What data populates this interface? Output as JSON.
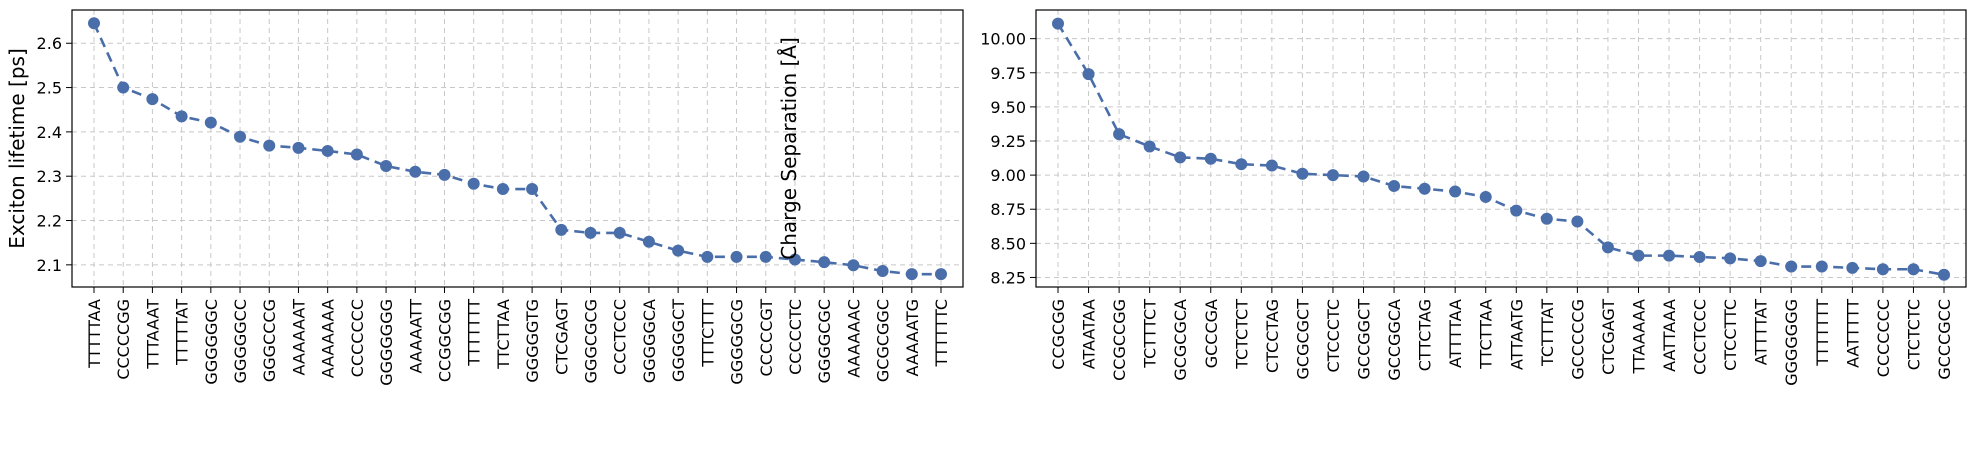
{
  "chart_data": [
    {
      "type": "line",
      "ylabel": "Exciton lifetime [ps]",
      "xlabel": "",
      "title": "",
      "grid": true,
      "ylim": [
        2.05,
        2.675
      ],
      "yticks": [
        2.1,
        2.2,
        2.3,
        2.4,
        2.5,
        2.6
      ],
      "categories": [
        "TTTTTAA",
        "CCCCCGG",
        "TTTAAAT",
        "TTTTTAT",
        "GGGGGGC",
        "GGGGGCC",
        "GGGCCCG",
        "AAAAAAT",
        "AAAAAAA",
        "CCCCCCC",
        "GGGGGGG",
        "AAAAATT",
        "CCGGCGG",
        "TTTTTTT",
        "TTCTTAA",
        "GGGGGTG",
        "CTCGAGT",
        "GGGCGCG",
        "CCCTCCC",
        "GGGGGCA",
        "GGGGGCT",
        "TTTCTTT",
        "GGGGGCG",
        "CCCCCGT",
        "CCCCCTC",
        "GGGGCGC",
        "AAAAAAC",
        "GCGCGGC",
        "AAAAATG",
        "TTTTTTC"
      ],
      "values": [
        2.645,
        2.5,
        2.474,
        2.435,
        2.421,
        2.389,
        2.369,
        2.364,
        2.357,
        2.349,
        2.323,
        2.31,
        2.303,
        2.283,
        2.271,
        2.271,
        2.179,
        2.172,
        2.172,
        2.152,
        2.132,
        2.118,
        2.118,
        2.118,
        2.112,
        2.106,
        2.099,
        2.086,
        2.079,
        2.079
      ]
    },
    {
      "type": "line",
      "ylabel": "Charge Separation [Å]",
      "xlabel": "",
      "title": "",
      "grid": true,
      "ylim": [
        8.18,
        10.21
      ],
      "yticks": [
        8.25,
        8.5,
        8.75,
        9.0,
        9.25,
        9.5,
        9.75,
        10.0
      ],
      "categories": [
        "CCGCGG",
        "ATAATAA",
        "CCGCCGG",
        "TCTTTCT",
        "GCGCGCA",
        "GCCCGA",
        "TCTCTCT",
        "CTCCTAG",
        "GCGCGCT",
        "CTCCCTC",
        "GCCGGCT",
        "GCCGGCA",
        "CTTCTAG",
        "ATTTTAA",
        "TTCTTAA",
        "ATTAATG",
        "TCTTTAT",
        "GCCCCCG",
        "CTCGAGT",
        "TTAAAAA",
        "AATTAAA",
        "CCCTCCC",
        "CTCCTTC",
        "ATTTTAT",
        "GGGGGGG",
        "TTTTTTT",
        "AATTTTT",
        "CCCCCCC",
        "CTCTCTC",
        "GCCCGCC"
      ],
      "values": [
        10.11,
        9.74,
        9.3,
        9.21,
        9.13,
        9.12,
        9.08,
        9.07,
        9.01,
        9.0,
        8.99,
        8.92,
        8.9,
        8.88,
        8.84,
        8.74,
        8.68,
        8.66,
        8.47,
        8.41,
        8.41,
        8.4,
        8.39,
        8.37,
        8.33,
        8.33,
        8.32,
        8.31,
        8.31,
        8.27
      ]
    }
  ]
}
